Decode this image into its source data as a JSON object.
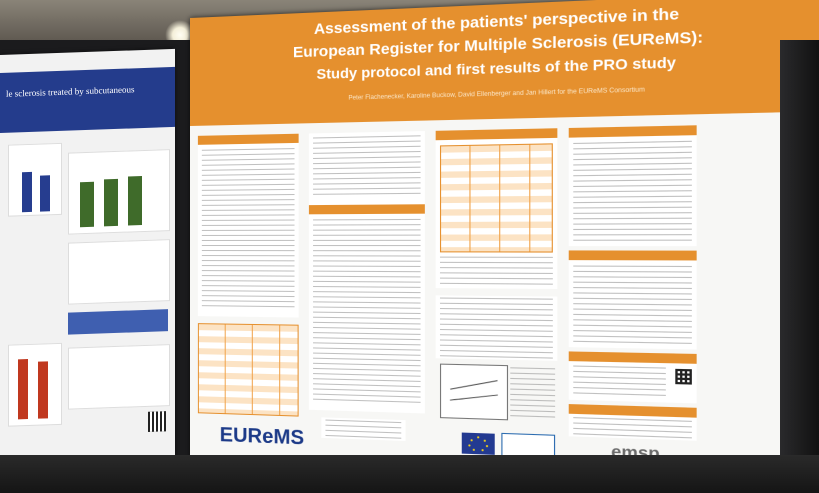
{
  "left_poster": {
    "title": "le sclerosis treated by subcutaneous"
  },
  "poster": {
    "title_line1": "Assessment of the patients' perspective  in the",
    "title_line2": "European Register for Multiple Sclerosis (EUReMS):",
    "title_line3": "Study protocol and first results of the PRO study",
    "authors": "Peter Flachenecker, Karoline Buckow, David Ellenberger and Jan Hillert for the EUReMS Consortium",
    "logo_eurems": "EUReMS",
    "logo_emsp": "emsp"
  },
  "colors": {
    "header_orange": "#e5902e",
    "left_header_blue": "#243c8c"
  }
}
